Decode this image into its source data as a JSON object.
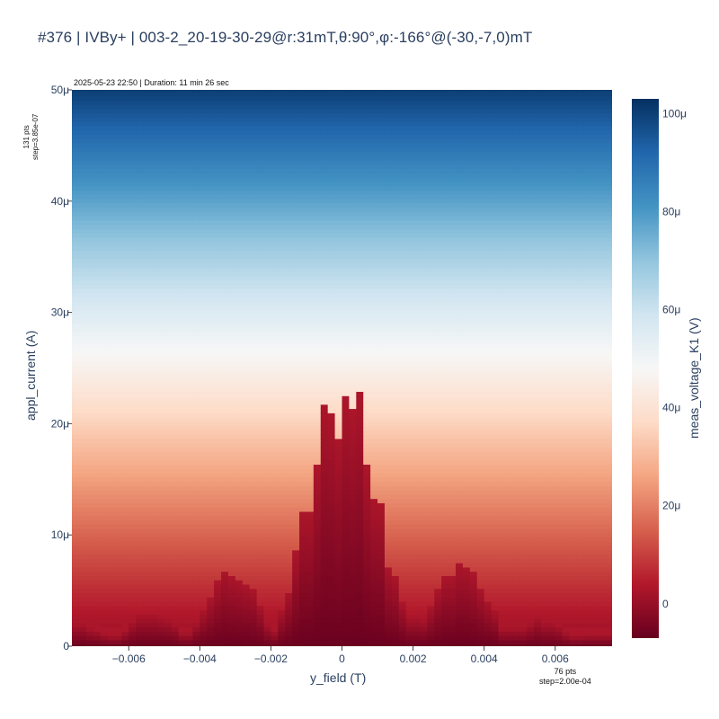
{
  "title": "#376 | IVBy+ | 003-2_20-19-30-29@r:31mT,θ:90°,φ:-166°@(-30,-7,0)mT",
  "subtitle": "2025-05-23 22:50 | Duration: 11 min 26 sec",
  "y_points_note": [
    "131 pts",
    "step=3.85e-07"
  ],
  "x_points_note": [
    "76 pts",
    "step=2.00e-04"
  ],
  "chart_data": {
    "type": "heatmap",
    "xlabel": "y_field (T)",
    "ylabel": "appl_current (A)",
    "colorbar_label": "meas_voltage_K1 (V)",
    "x_range": [
      -0.0076,
      0.0076
    ],
    "y_range": [
      0,
      5e-05
    ],
    "x_ticks": [
      -0.006,
      -0.004,
      -0.002,
      0,
      0.002,
      0.004,
      0.006
    ],
    "x_tick_labels": [
      "−0.006",
      "−0.004",
      "−0.002",
      "0",
      "0.002",
      "0.004",
      "0.006"
    ],
    "y_ticks": [
      0,
      1e-05,
      2e-05,
      3e-05,
      4e-05,
      5e-05
    ],
    "y_tick_labels": [
      "0",
      "10μ",
      "20μ",
      "30μ",
      "40μ",
      "50μ"
    ],
    "colorbar_range": [
      -7e-06,
      0.000103
    ],
    "colorbar_ticks": [
      0,
      2e-05,
      4e-05,
      6e-05,
      8e-05,
      0.0001
    ],
    "colorbar_tick_labels": [
      "0",
      "20μ",
      "40μ",
      "60μ",
      "80μ",
      "100μ"
    ],
    "colorscale": "RdBu",
    "colors": [
      "#67001f",
      "#b2182b",
      "#d6604d",
      "#f4a582",
      "#fddbc7",
      "#f7f7f7",
      "#d1e5f0",
      "#92c5de",
      "#4393c3",
      "#2166ac",
      "#053061"
    ],
    "x_points": 76,
    "x_step": 0.0002,
    "y_points": 131,
    "y_step": 3.85e-07,
    "critical_current_profile": {
      "y_field": [
        -0.0075,
        -0.0073,
        -0.0071,
        -0.0069,
        -0.0067,
        -0.0065,
        -0.0063,
        -0.0061,
        -0.0059,
        -0.0057,
        -0.0055,
        -0.0053,
        -0.0051,
        -0.0049,
        -0.0047,
        -0.0045,
        -0.0043,
        -0.0041,
        -0.0039,
        -0.0037,
        -0.0035,
        -0.0033,
        -0.0031,
        -0.0029,
        -0.0027,
        -0.0025,
        -0.0023,
        -0.0021,
        -0.0019,
        -0.0017,
        -0.0015,
        -0.0013,
        -0.0011,
        -0.0009,
        -0.0007,
        -0.0005,
        -0.0003,
        -0.0001,
        0.0001,
        0.0003,
        0.0005,
        0.0007,
        0.0009,
        0.0011,
        0.0013,
        0.0015,
        0.0017,
        0.0019,
        0.0021,
        0.0023,
        0.0025,
        0.0027,
        0.0029,
        0.0031,
        0.0033,
        0.0035,
        0.0037,
        0.0039,
        0.0041,
        0.0043,
        0.0045,
        0.0047,
        0.0049,
        0.0051,
        0.0053,
        0.0055,
        0.0057,
        0.0059,
        0.0061,
        0.0063,
        0.0065,
        0.0067,
        0.0069,
        0.0071,
        0.0073,
        0.0075
      ],
      "appl_current": [
        2.1e-06,
        2.1e-06,
        1.7e-06,
        1.5e-06,
        1.2e-06,
        1e-06,
        1e-06,
        1.5e-06,
        2.3e-06,
        2.9e-06,
        2.9e-06,
        2.9e-06,
        2.7e-06,
        2.5e-06,
        2.1e-06,
        1.3e-06,
        1.3e-06,
        2.2e-06,
        3.3e-06,
        4.4e-06,
        5.8e-06,
        6.9e-06,
        6.4e-06,
        6.1e-06,
        5.6e-06,
        5.2e-06,
        3.8e-06,
        2.1e-06,
        1.5e-06,
        3.3e-06,
        5e-06,
        8.5e-06,
        1.23e-05,
        1.21e-05,
        1.62e-05,
        2.19e-05,
        2.1e-05,
        1.88e-05,
        2.26e-05,
        2.13e-05,
        2.29e-05,
        1.62e-05,
        1.33e-05,
        1.3e-05,
        7.2e-06,
        6.4e-06,
        4e-06,
        2.7e-06,
        2.7e-06,
        2.5e-06,
        3.7e-06,
        5.2e-06,
        6.4e-06,
        6.4e-06,
        7.5e-06,
        7.2e-06,
        6.6e-06,
        5.2e-06,
        4.2e-06,
        3.3e-06,
        1.7e-06,
        1.7e-06,
        1.7e-06,
        1.7e-06,
        2.1e-06,
        2.7e-06,
        2.2e-06,
        2.2e-06,
        1.9e-06,
        1.3e-06,
        1e-06,
        1e-06,
        1.1e-06,
        1.1e-06,
        1.1e-06,
        1.1e-06
      ]
    }
  }
}
